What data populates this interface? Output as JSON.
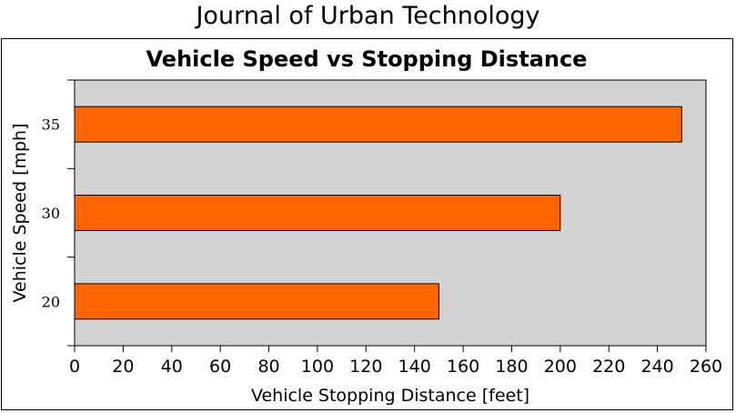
{
  "header": {
    "title": "Journal of Urban Technology"
  },
  "chart_data": {
    "type": "bar",
    "orientation": "horizontal",
    "title": "Vehicle Speed vs Stopping Distance",
    "xlabel": "Vehicle Stopping Distance [feet]",
    "ylabel": "Vehicle Speed [mph]",
    "categories": [
      "20",
      "30",
      "35"
    ],
    "values": [
      150,
      200,
      250
    ],
    "xlim": [
      0,
      260
    ],
    "xticks": [
      0,
      20,
      40,
      60,
      80,
      100,
      120,
      140,
      160,
      180,
      200,
      220,
      240,
      260
    ],
    "grid": false,
    "legend": "none",
    "colors": {
      "bar": "#ff6600",
      "bar_edge": "#000000",
      "plot_background": "#d3d3d3"
    }
  }
}
